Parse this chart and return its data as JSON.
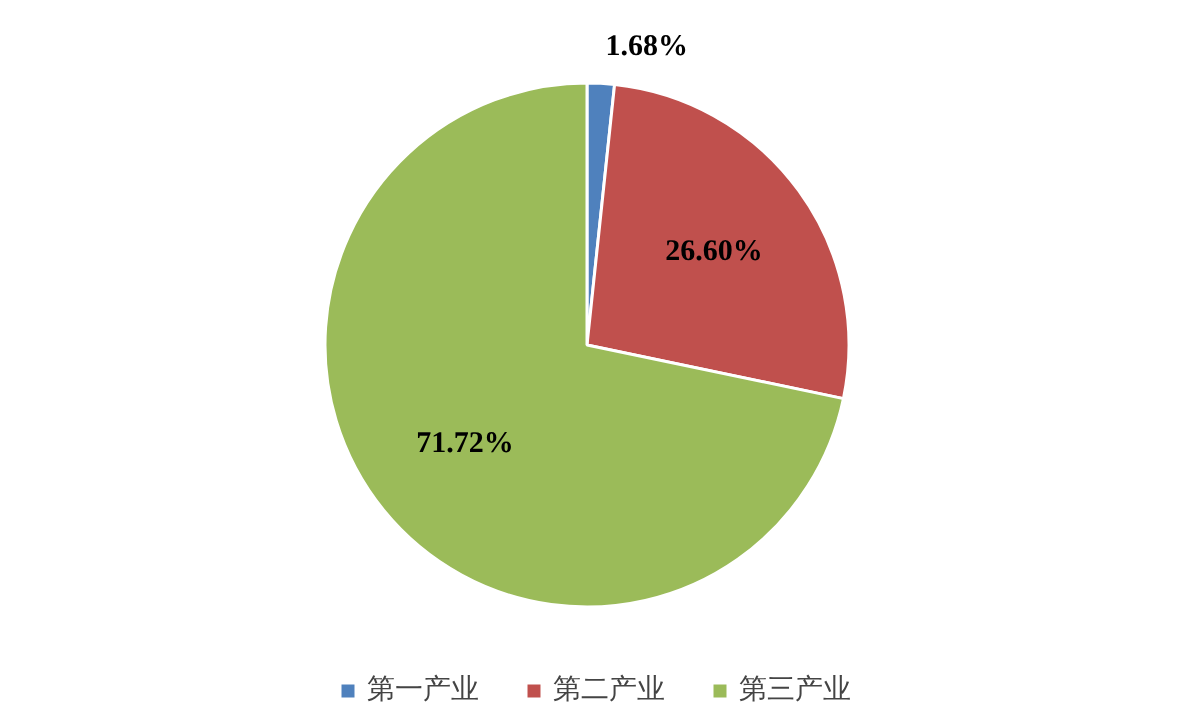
{
  "chart_data": {
    "type": "pie",
    "categories": [
      "第一产业",
      "第二产业",
      "第三产业"
    ],
    "values": [
      1.68,
      26.6,
      71.72
    ],
    "colors": [
      "#4f81bd",
      "#c0504d",
      "#9bbb59"
    ],
    "value_labels": [
      "1.68%",
      "26.60%",
      "71.72%"
    ],
    "legend": "bottom"
  }
}
